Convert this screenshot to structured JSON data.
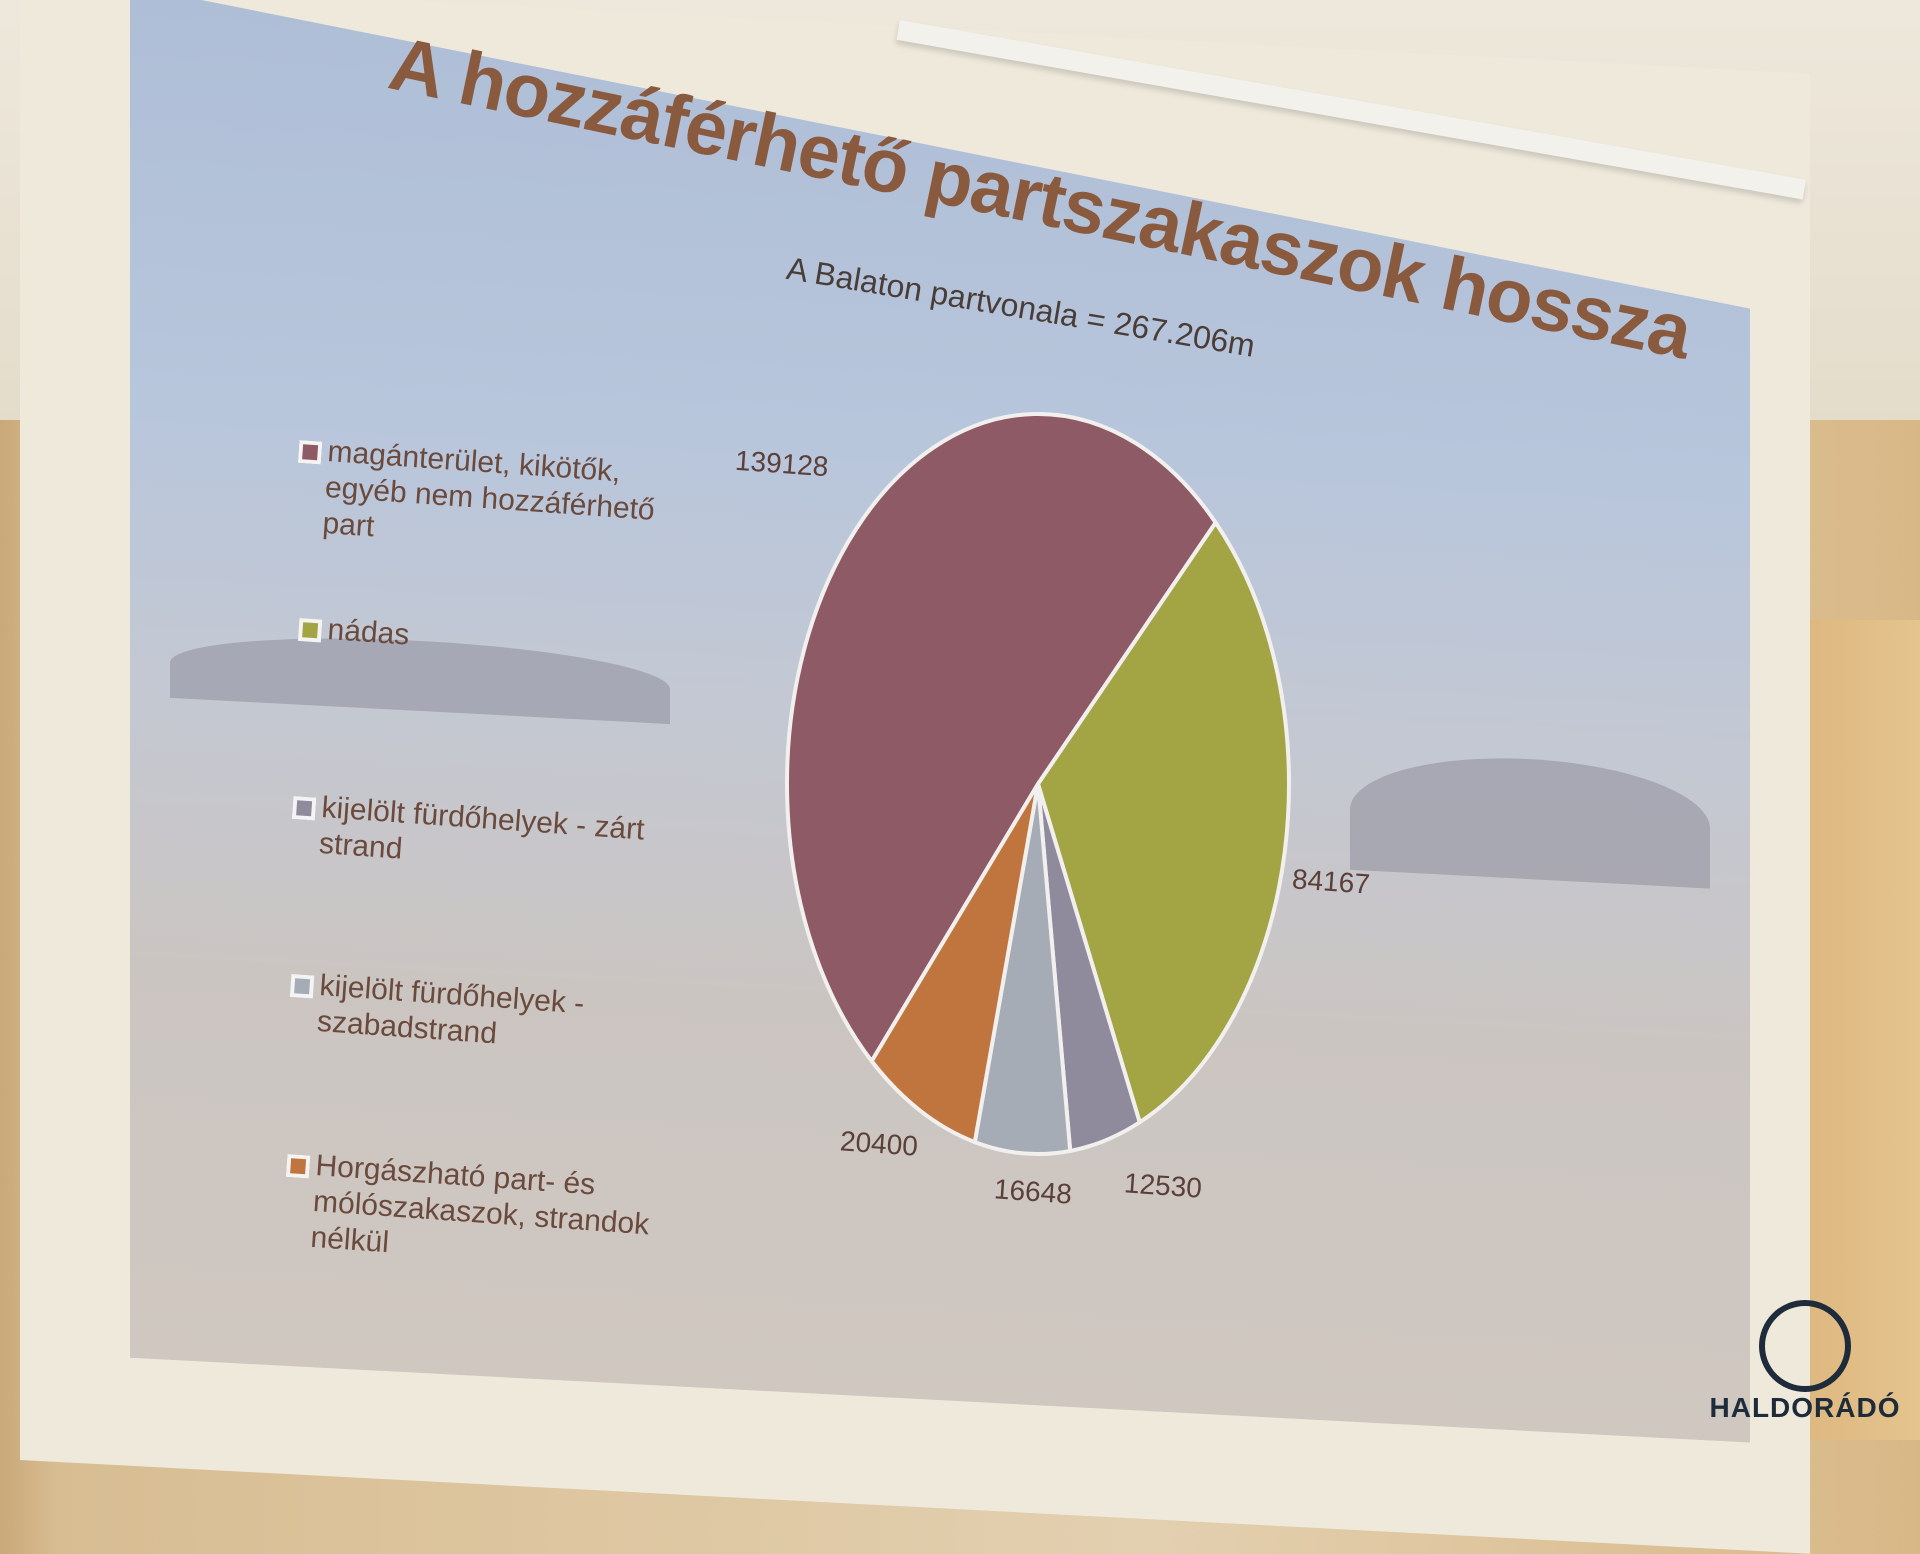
{
  "chart_data": {
    "type": "pie",
    "title": "A hozzáférhető partszakaszok hossza",
    "subtitle": "A Balaton partvonala = 267.206m",
    "legend_position": "left",
    "categories": [
      "magánterület, kikötők, egyéb nem hozzáférhető part",
      "nádas",
      "kijelölt fürdőhelyek - zárt strand",
      "kijelölt fürdőhelyek - szabadstrand",
      "Horgászható part- és mólószakaszok, strandok nélkül"
    ],
    "values": [
      139128,
      84167,
      12530,
      16648,
      20400
    ],
    "labels": [
      "139128",
      "84167",
      "12530",
      "16648",
      "20400"
    ],
    "colors": [
      "#8e5a66",
      "#a3a444",
      "#8f8a9c",
      "#a5acb6",
      "#c0743e"
    ]
  },
  "watermark": "HALDORÁDÓ"
}
